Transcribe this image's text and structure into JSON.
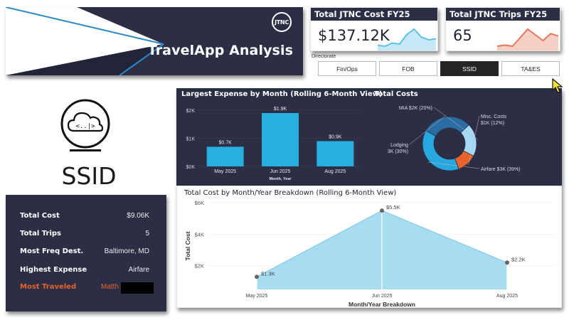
{
  "header": {
    "title": "TravelApp Analysis",
    "logo_text": "JTNC"
  },
  "kpis": {
    "cost": {
      "label": "Total JTNC Cost FY25",
      "value": "$137.12K",
      "spark_color": "#5ec0e8",
      "spark": [
        40,
        38,
        44,
        42,
        60,
        70,
        55,
        50,
        52
      ]
    },
    "trips": {
      "label": "Total JTNC Trips FY25",
      "value": "65",
      "spark_color": "#e5785a",
      "spark": [
        40,
        42,
        40,
        55,
        70,
        60,
        50,
        62,
        58
      ]
    }
  },
  "directorate": {
    "label": "Directorate",
    "options": [
      "Fin/Ops",
      "FOB",
      "SSID",
      "TA&ES"
    ],
    "selected": "SSID"
  },
  "ssid": {
    "title": "SSID",
    "icon": "cloud-code-icon"
  },
  "summary": {
    "rows": [
      {
        "key": "Total Cost",
        "value": "$9.06K"
      },
      {
        "key": "Total Trips",
        "value": "5"
      },
      {
        "key": "Most Freq Dest.",
        "value": "Baltimore, MD"
      },
      {
        "key": "Highest Expense",
        "value": "Airfare"
      },
      {
        "key": "Most Traveled",
        "value": "Matth"
      }
    ]
  },
  "largest_expense": {
    "title": "Largest Expense by Month (Rolling 6-Month View)",
    "xlabel": "Month, Year",
    "y_ticks": [
      "$2K",
      "$1K",
      "$0K"
    ],
    "ylim": [
      0,
      2
    ],
    "bar_color": "#27b0df",
    "categories": [
      "May 2025",
      "Jun 2025",
      "Aug 2025"
    ],
    "values": [
      0.7,
      1.9,
      0.9
    ],
    "labels": [
      "$0.7K",
      "$1.9K",
      "$0.9K"
    ]
  },
  "total_costs": {
    "title": "Total Costs",
    "slices": [
      {
        "name": "Airfare",
        "value": 39,
        "label_a": "Airfare $3K (39%)",
        "label_b": "",
        "color": "#27a9df"
      },
      {
        "name": "Lodging",
        "value": 30,
        "label_a": "Lodging",
        "label_b": "3K (30%)",
        "color": "#2a6da3"
      },
      {
        "name": "MIA",
        "value": 20,
        "label_a": "MIA $2K (20%)",
        "label_b": "",
        "color": "#a6d9f3"
      },
      {
        "name": "Misc. Costs",
        "value": 12,
        "label_a": "Misc. Costs",
        "label_b": "$1K (12%)",
        "color": "#e8632b"
      }
    ]
  },
  "cost_breakdown": {
    "title": "Total Cost by Month/Year Breakdown (Rolling 6-Month View)",
    "xlabel": "Month/Year Breakdown",
    "ylabel": "Total Cost",
    "y_ticks": [
      "$6K",
      "$4K",
      "$2K"
    ],
    "ylim": [
      0.5,
      6
    ],
    "fill_color": "#a8dcf0",
    "categories": [
      "May 2025",
      "Jun 2025",
      "Aug 2025"
    ],
    "values": [
      1.3,
      5.5,
      2.2
    ],
    "labels": [
      "$1.3K",
      "$5.5K",
      "$2.2K"
    ]
  }
}
